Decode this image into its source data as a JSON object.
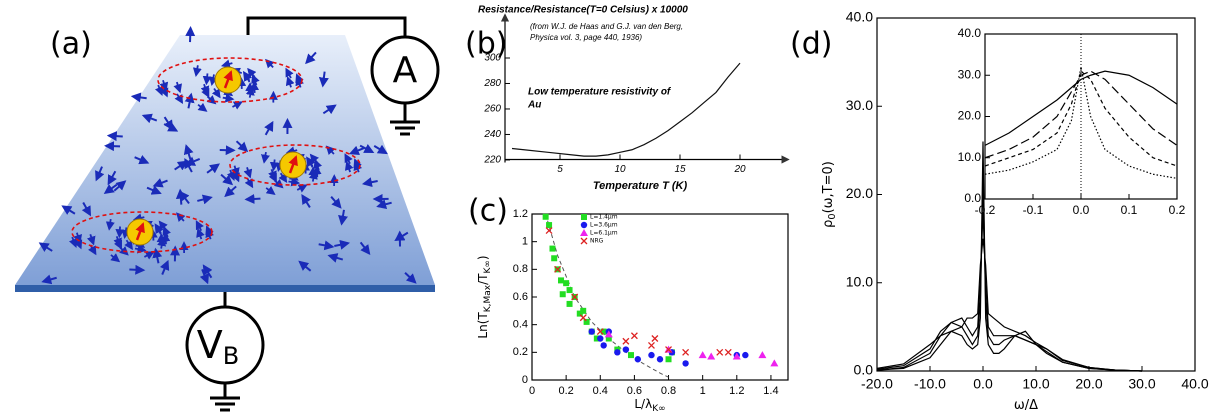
{
  "diagram": {
    "panel_label": "(a)",
    "ammeter_label": "A",
    "voltage_label": "V",
    "voltage_subscript": "B"
  },
  "chart_data": [
    {
      "type": "line",
      "panel_label": "(b)",
      "title": "Resistance/Resistance(T=0 Celsius) x 10000",
      "subtitle": [
        "(from W.J. de Haas and G.J. van den Berg,",
        "Physica vol. 3, page 440, 1936)"
      ],
      "annotation": [
        "Low temperature resistivity of",
        "Au"
      ],
      "xlabel": "Temperature T (K)",
      "x": [
        1,
        2,
        4,
        6,
        7,
        8,
        9,
        10,
        11,
        12,
        13,
        14,
        15,
        16,
        17,
        18,
        19,
        20
      ],
      "series": [
        {
          "color": "#111",
          "values": [
            229,
            228,
            226,
            224,
            223,
            223,
            224,
            226,
            228,
            232,
            237,
            243,
            250,
            257,
            265,
            273,
            285,
            296
          ]
        }
      ],
      "xlim": [
        0,
        23
      ],
      "ylim": [
        218,
        320
      ],
      "xticks": [
        5,
        10,
        15,
        20
      ],
      "yticks": [
        220,
        240,
        260,
        280,
        300
      ],
      "frame": false
    },
    {
      "type": "scatter",
      "panel_label": "(c)",
      "xlabel": "L/λ",
      "xlabel_sub": "K∞",
      "ylabel": "Ln(T",
      "ylabel_sub": "K,Max",
      "ylabel_mid": "/T",
      "ylabel_sub2": "K∞",
      "ylabel_end": ")",
      "series": [
        {
          "name": "L=1.4μm",
          "color": "#22dd22",
          "marker": "square",
          "x": [
            0.08,
            0.1,
            0.12,
            0.13,
            0.15,
            0.17,
            0.2,
            0.22,
            0.18,
            0.25,
            0.22,
            0.28,
            0.3,
            0.32,
            0.35,
            0.38,
            0.42,
            0.45,
            0.5,
            0.58,
            0.8,
            0.82
          ],
          "values": [
            1.18,
            1.12,
            0.95,
            0.88,
            0.8,
            0.72,
            0.7,
            0.65,
            0.62,
            0.6,
            0.55,
            0.48,
            0.5,
            0.42,
            0.35,
            0.3,
            0.35,
            0.3,
            0.22,
            0.18,
            0.15,
            0.2
          ]
        },
        {
          "name": "L=3.6μm",
          "color": "#1a1aee",
          "marker": "circle",
          "x": [
            0.35,
            0.4,
            0.42,
            0.45,
            0.5,
            0.55,
            0.62,
            0.7,
            0.75,
            0.82,
            0.9,
            1.2,
            1.25
          ],
          "values": [
            0.35,
            0.3,
            0.25,
            0.35,
            0.2,
            0.22,
            0.15,
            0.18,
            0.15,
            0.2,
            0.12,
            0.18,
            0.18
          ]
        },
        {
          "name": "L=6.1μm",
          "color": "#ee22ee",
          "marker": "triangle",
          "x": [
            0.45,
            0.8,
            1.0,
            1.05,
            1.2,
            1.35,
            1.42
          ],
          "values": [
            0.33,
            0.22,
            0.18,
            0.17,
            0.17,
            0.18,
            0.12
          ]
        },
        {
          "name": "NRG",
          "color": "#dd2222",
          "marker": "cross",
          "x": [
            0.1,
            0.15,
            0.25,
            0.3,
            0.4,
            0.55,
            0.6,
            0.7,
            0.72,
            0.8,
            0.9,
            1.1,
            1.15
          ],
          "values": [
            1.08,
            0.8,
            0.6,
            0.45,
            0.35,
            0.28,
            0.32,
            0.25,
            0.3,
            0.22,
            0.2,
            0.2,
            0.2
          ]
        }
      ],
      "fit_curve": {
        "color": "#555",
        "x": [
          0.08,
          0.15,
          0.25,
          0.35,
          0.45,
          0.55,
          0.65,
          0.75,
          0.8
        ],
        "values": [
          1.2,
          0.9,
          0.6,
          0.42,
          0.3,
          0.2,
          0.12,
          0.05,
          0.02
        ]
      },
      "xlim": [
        0,
        1.5
      ],
      "ylim": [
        0,
        1.2
      ],
      "xticks": [
        0,
        0.2,
        0.4,
        0.6,
        0.8,
        1,
        1.2,
        1.4
      ],
      "yticks": [
        0,
        0.2,
        0.4,
        0.6,
        0.8,
        1,
        1.2
      ],
      "frame": true,
      "legend": "top-left"
    },
    {
      "type": "line",
      "panel_label": "(d)",
      "ylabel": "ρ",
      "ylabel_sub": "0",
      "ylabel_end": "(ω,T=0)",
      "xlabel": "ω/Δ",
      "x": [
        -20,
        -15,
        -10,
        -8,
        -6,
        -4,
        -3,
        -2,
        -1,
        -0.5,
        0,
        0.5,
        1,
        2,
        3,
        4,
        6,
        8,
        10,
        12,
        15,
        20,
        25,
        30
      ],
      "series": [
        {
          "color": "#000",
          "values": [
            0.1,
            0.3,
            1.5,
            3,
            4.5,
            4,
            3,
            2.5,
            3,
            6,
            26,
            6,
            3,
            2,
            2,
            2.5,
            4,
            4.5,
            3,
            2,
            1,
            0.3,
            0.1,
            0
          ]
        },
        {
          "color": "#000",
          "values": [
            0.1,
            0.4,
            2,
            4,
            5.5,
            5,
            4,
            3,
            4,
            8,
            22,
            8,
            4,
            3,
            3,
            3.5,
            4,
            3.5,
            3,
            2.2,
            1,
            0.3,
            0.1,
            0
          ]
        },
        {
          "color": "#000",
          "values": [
            0.2,
            0.6,
            2.5,
            4.5,
            5.5,
            6,
            5,
            4,
            5,
            10,
            18,
            10,
            5,
            4,
            4,
            4,
            4,
            3.5,
            3,
            2.5,
            1.2,
            0.4,
            0.1,
            0
          ]
        },
        {
          "color": "#000",
          "values": [
            0.3,
            0.8,
            3,
            4,
            4.5,
            5,
            6,
            6,
            6.5,
            12,
            15,
            12,
            6.5,
            6,
            5.5,
            5,
            4.5,
            4,
            3.2,
            2.5,
            1.3,
            0.4,
            0.1,
            0
          ]
        }
      ],
      "xlim": [
        -20,
        40
      ],
      "ylim": [
        0,
        40
      ],
      "xticks": [
        {
          "value": -20,
          "label": "-20.0"
        },
        {
          "value": -10,
          "label": "-10.0"
        },
        {
          "value": 0,
          "label": "0.0"
        },
        {
          "value": 10,
          "label": "10.0"
        },
        {
          "value": 20,
          "label": "20.0"
        },
        {
          "value": 30,
          "label": "30.0"
        },
        {
          "value": 40,
          "label": "40.0"
        }
      ],
      "yticks": [
        {
          "value": 0,
          "label": "0.0"
        },
        {
          "value": 10,
          "label": "10.0"
        },
        {
          "value": 20,
          "label": "20.0"
        },
        {
          "value": 30,
          "label": "30.0"
        },
        {
          "value": 40,
          "label": "40.0"
        }
      ],
      "frame": true
    },
    {
      "type": "line",
      "x": [
        -0.2,
        -0.15,
        -0.1,
        -0.05,
        -0.02,
        0,
        0.02,
        0.05,
        0.1,
        0.15,
        0.2
      ],
      "series": [
        {
          "color": "#000",
          "dash": "none",
          "values": [
            13,
            16,
            20,
            24,
            27,
            29,
            30,
            31,
            30,
            27,
            23
          ]
        },
        {
          "color": "#000",
          "dash": "9,4",
          "values": [
            10,
            12,
            15,
            20,
            26,
            30,
            31,
            29,
            23,
            17,
            13
          ]
        },
        {
          "color": "#000",
          "dash": "4,3",
          "values": [
            8,
            10,
            12,
            16,
            23,
            31,
            29,
            22,
            15,
            10,
            8
          ]
        },
        {
          "color": "#000",
          "dash": "1.5,2",
          "values": [
            6,
            7,
            9,
            12,
            19,
            32,
            20,
            12,
            8,
            6,
            5
          ]
        }
      ],
      "xlim": [
        -0.2,
        0.2
      ],
      "ylim": [
        0,
        40
      ],
      "xticks": [
        {
          "value": -0.2,
          "label": "-0.2"
        },
        {
          "value": -0.1,
          "label": "-0.1"
        },
        {
          "value": 0,
          "label": "0.0"
        },
        {
          "value": 0.1,
          "label": "0.1"
        },
        {
          "value": 0.2,
          "label": "0.2"
        }
      ],
      "yticks": [
        {
          "value": 0,
          "label": "0.0"
        },
        {
          "value": 10,
          "label": "10.0"
        },
        {
          "value": 20,
          "label": "20.0"
        },
        {
          "value": 30,
          "label": "30.0"
        },
        {
          "value": 40,
          "label": "40.0"
        }
      ],
      "frame": true
    }
  ]
}
